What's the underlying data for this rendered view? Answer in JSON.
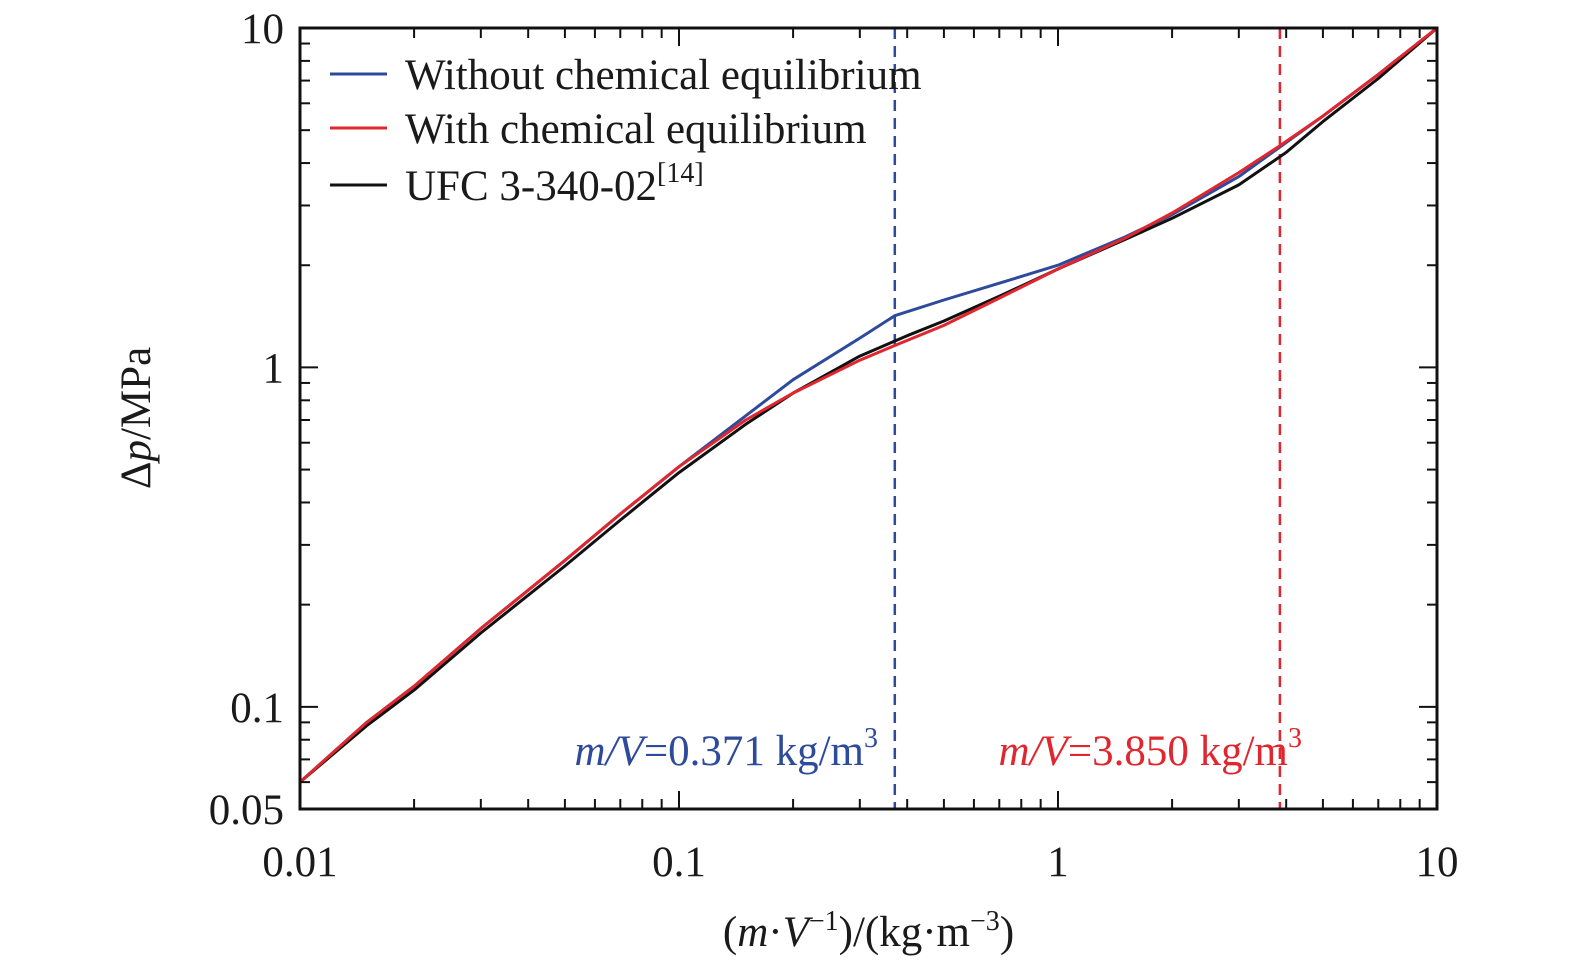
{
  "chart_data": {
    "type": "line",
    "xlabel": {
      "open": "(",
      "m": "m",
      "dot": "·",
      "v": "V",
      "exp": "−1",
      "rest": ")/(kg·m",
      "exp2": "−3",
      "close": ")"
    },
    "ylabel": {
      "delta": "Δ",
      "p": "p",
      "rest": "/MPa"
    },
    "x_scale": "log",
    "y_scale": "log",
    "xlim": [
      0.01,
      10
    ],
    "ylim": [
      0.05,
      10
    ],
    "x_ticks": [
      {
        "value": 0.01,
        "label": "0.01"
      },
      {
        "value": 0.1,
        "label": "0.1"
      },
      {
        "value": 1,
        "label": "1"
      },
      {
        "value": 10,
        "label": "10"
      }
    ],
    "y_ticks": [
      {
        "value": 0.05,
        "label": "0.05"
      },
      {
        "value": 0.1,
        "label": "0.1"
      },
      {
        "value": 1,
        "label": "1"
      },
      {
        "value": 10,
        "label": "10"
      }
    ],
    "grid": false,
    "legend_position": "top-left",
    "series": [
      {
        "name": "Without chemical equilibrium",
        "color": "#2e4a9b",
        "x": [
          0.01,
          0.015,
          0.02,
          0.03,
          0.05,
          0.07,
          0.1,
          0.15,
          0.2,
          0.3,
          0.371,
          0.5,
          0.7,
          1,
          1.5,
          2,
          3,
          5,
          7,
          10
        ],
        "y": [
          0.06,
          0.09,
          0.115,
          0.17,
          0.27,
          0.37,
          0.51,
          0.72,
          0.92,
          1.22,
          1.42,
          1.58,
          1.77,
          2.0,
          2.42,
          2.82,
          3.65,
          5.5,
          7.3,
          10
        ]
      },
      {
        "name": "With chemical equilibrium",
        "color": "#e0262e",
        "x": [
          0.01,
          0.015,
          0.02,
          0.03,
          0.05,
          0.07,
          0.1,
          0.15,
          0.2,
          0.3,
          0.371,
          0.5,
          0.7,
          1,
          1.5,
          2,
          3,
          3.85,
          5,
          7,
          10
        ],
        "y": [
          0.06,
          0.09,
          0.115,
          0.17,
          0.27,
          0.37,
          0.51,
          0.7,
          0.84,
          1.05,
          1.16,
          1.33,
          1.6,
          1.95,
          2.4,
          2.85,
          3.75,
          4.5,
          5.5,
          7.3,
          10
        ]
      },
      {
        "name": "UFC 3-340-02",
        "name_ref": "[14]",
        "color": "#111111",
        "x": [
          0.01,
          0.015,
          0.02,
          0.03,
          0.05,
          0.07,
          0.1,
          0.15,
          0.2,
          0.3,
          0.4,
          0.5,
          0.7,
          1,
          1.5,
          2,
          3,
          4,
          5,
          7,
          10
        ],
        "y": [
          0.06,
          0.088,
          0.112,
          0.165,
          0.26,
          0.355,
          0.49,
          0.68,
          0.84,
          1.08,
          1.24,
          1.37,
          1.62,
          1.95,
          2.38,
          2.75,
          3.45,
          4.3,
          5.3,
          7.1,
          10
        ]
      }
    ],
    "vlines": [
      {
        "x": 0.371,
        "color": "#2e4a9b",
        "dash": true
      },
      {
        "x": 3.85,
        "color": "#e0262e",
        "dash": true
      }
    ],
    "annotations": [
      {
        "var": "m/V",
        "eq": "=",
        "value": "0.371 kg/m",
        "sup": "3",
        "color": "#2e4a9b"
      },
      {
        "var": "m/V",
        "eq": "=",
        "value": "3.850 kg/m",
        "sup": "3",
        "color": "#e0262e"
      }
    ]
  }
}
